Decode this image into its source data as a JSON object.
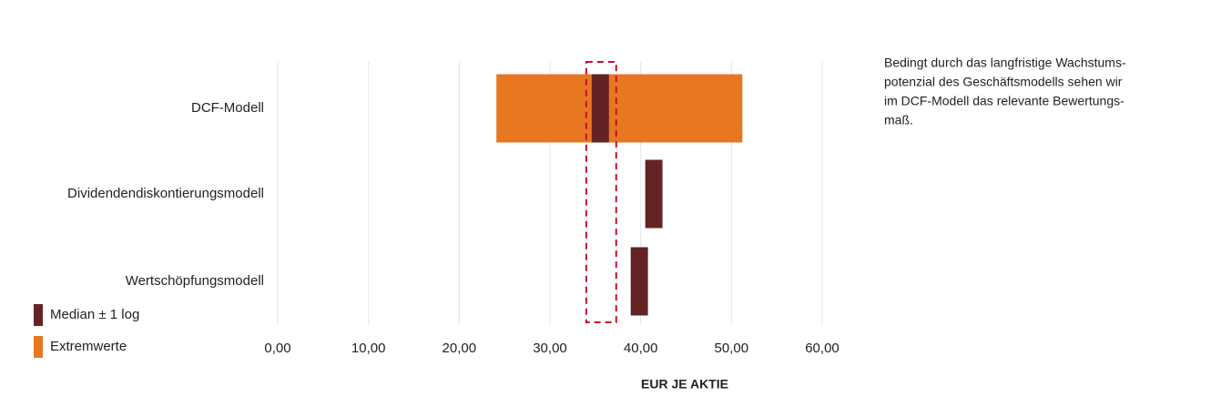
{
  "chart_data": {
    "type": "floating_bar",
    "categories": [
      "DCF-Modell",
      "Dividendendiskontierungsmodell",
      "Wertschöpfungsmodell"
    ],
    "series": [
      {
        "name": "Extremwerte",
        "color": "#e87722",
        "low": [
          24.1,
          null,
          null
        ],
        "high": [
          51.2,
          null,
          null
        ]
      },
      {
        "name": "Median ± 1 log",
        "color": "#642323",
        "low": [
          34.6,
          40.5,
          38.9
        ],
        "high": [
          36.5,
          42.4,
          40.8
        ]
      }
    ],
    "legend_order": [
      1,
      0
    ],
    "xlim": [
      0,
      60
    ],
    "xticks": [
      {
        "value": 0,
        "label": "0,00"
      },
      {
        "value": 10,
        "label": "10,00"
      },
      {
        "value": 20,
        "label": "20,00"
      },
      {
        "value": 30,
        "label": "30,00"
      },
      {
        "value": 40,
        "label": "40,00"
      },
      {
        "value": 50,
        "label": "50,00"
      },
      {
        "value": 60,
        "label": "60,00"
      }
    ],
    "x_label": "EUR JE AKTIE",
    "grid": true,
    "highlight": {
      "range": [
        34.0,
        37.3
      ],
      "color": "#c8102e"
    },
    "annotation": [
      "Bedingt durch das langfristige Wachstums-",
      "potenzial des Geschäftsmodells sehen wir",
      "im DCF-Modell das relevante Bewertungs-",
      "maß."
    ]
  }
}
